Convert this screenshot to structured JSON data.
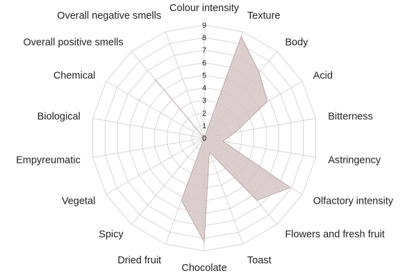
{
  "chart_data": {
    "type": "radar",
    "title": "",
    "rmin": 0,
    "rmax": 9,
    "ticks": [
      "0",
      "1",
      "2",
      "3",
      "4",
      "5",
      "6",
      "7",
      "8",
      "9"
    ],
    "grid": true,
    "fill_color": "#d6c5c5",
    "fill_opacity": 0.85,
    "grid_color": "#d4d4d4",
    "axes": [
      "Colour intensity",
      "Texture",
      "Body",
      "Acid",
      "Bitterness",
      "Astringency",
      "Olfactory intensity",
      "Flowers and fresh fruit",
      "Toast",
      "Chocolate",
      "Dried fruit",
      "Spicy",
      "Vegetal",
      "Empyreumatic",
      "Biological",
      "Chemical",
      "Overall positive smells",
      "Overall negative smells"
    ],
    "values": [
      0,
      8.6,
      6.8,
      5.8,
      2.5,
      1.5,
      7.9,
      6.5,
      1.2,
      8.3,
      5.3,
      0,
      0,
      0,
      0,
      0,
      6.1,
      0
    ]
  }
}
